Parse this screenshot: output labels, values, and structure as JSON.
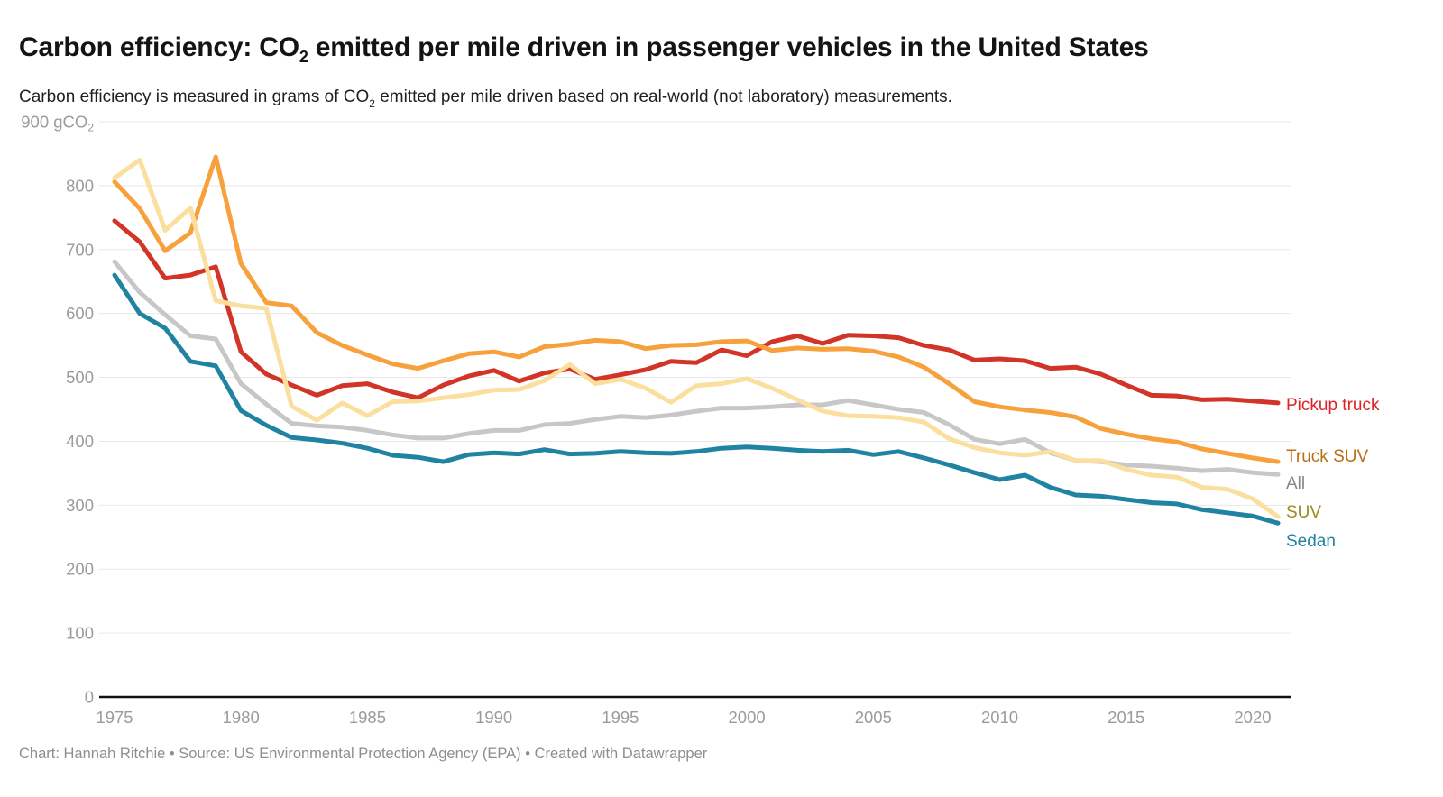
{
  "header": {
    "title_pre": "Carbon efficiency: CO",
    "title_sub": "2",
    "title_post": " emitted per mile driven in passenger vehicles in the United States",
    "subtitle_pre": "Carbon efficiency is measured in grams of CO",
    "subtitle_sub": "2",
    "subtitle_post": " emitted per mile driven based on real-world (not laboratory) measurements."
  },
  "footer": {
    "text": "Chart: Hannah Ritchie • Source: US Environmental Protection Agency (EPA) • Created with Datawrapper"
  },
  "chart_data": {
    "type": "line",
    "title": "Carbon efficiency: CO2 emitted per mile driven in passenger vehicles in the United States",
    "ylabel_unit": "gCO2 per mile",
    "y_top_tick_pre": "900 gCO",
    "y_top_tick_sub": "2",
    "ylim": [
      0,
      900
    ],
    "ytick_step": 100,
    "grid": "horizontal",
    "legend_position": "right-of-line-ends",
    "axis_text_color": "#9b9b9b",
    "gridline_color": "#e8e8e8",
    "baseline_color": "#111111",
    "xticks": [
      1975,
      1980,
      1985,
      1990,
      1995,
      2000,
      2005,
      2010,
      2015,
      2020
    ],
    "x": [
      1975,
      1976,
      1977,
      1978,
      1979,
      1980,
      1981,
      1982,
      1983,
      1984,
      1985,
      1986,
      1987,
      1988,
      1989,
      1990,
      1991,
      1992,
      1993,
      1994,
      1995,
      1996,
      1997,
      1998,
      1999,
      2000,
      2001,
      2002,
      2003,
      2004,
      2005,
      2006,
      2007,
      2008,
      2009,
      2010,
      2011,
      2012,
      2013,
      2014,
      2015,
      2016,
      2017,
      2018,
      2019,
      2020,
      2021
    ],
    "series": [
      {
        "name": "Pickup truck",
        "color": "#d23428",
        "label_color": "#dc2127",
        "label_y": 450,
        "values": [
          745,
          712,
          655,
          660,
          673,
          540,
          505,
          488,
          472,
          487,
          490,
          477,
          468,
          488,
          502,
          511,
          494,
          507,
          513,
          497,
          504,
          512,
          525,
          523,
          543,
          534,
          556,
          565,
          553,
          566,
          565,
          562,
          550,
          543,
          527,
          529,
          526,
          514,
          516,
          505,
          488,
          472,
          471,
          465,
          466,
          463,
          460
        ]
      },
      {
        "name": "Truck SUV",
        "color": "#f7a13c",
        "label_color": "#b86f16",
        "label_y": 507,
        "values": [
          806,
          764,
          698,
          726,
          845,
          678,
          617,
          612,
          570,
          550,
          535,
          521,
          514,
          526,
          537,
          540,
          532,
          548,
          552,
          558,
          556,
          545,
          550,
          551,
          556,
          557,
          542,
          546,
          544,
          545,
          541,
          532,
          516,
          490,
          462,
          454,
          449,
          445,
          438,
          420,
          411,
          404,
          399,
          388,
          381,
          374,
          368
        ]
      },
      {
        "name": "All",
        "color": "#c7c7c7",
        "label_color": "#878787",
        "label_y": 537,
        "values": [
          681,
          633,
          598,
          565,
          560,
          490,
          458,
          428,
          424,
          422,
          417,
          410,
          405,
          405,
          412,
          417,
          417,
          426,
          428,
          434,
          439,
          437,
          441,
          447,
          452,
          452,
          454,
          457,
          457,
          464,
          457,
          450,
          445,
          426,
          403,
          396,
          403,
          382,
          370,
          368,
          363,
          361,
          358,
          354,
          356,
          351,
          348
        ]
      },
      {
        "name": "SUV",
        "color": "#fbdf9f",
        "label_color": "#9d8b20",
        "label_y": 569,
        "values": [
          812,
          840,
          730,
          765,
          620,
          612,
          608,
          455,
          433,
          460,
          440,
          462,
          463,
          468,
          473,
          480,
          481,
          495,
          520,
          490,
          497,
          483,
          461,
          487,
          490,
          498,
          483,
          465,
          447,
          440,
          439,
          437,
          430,
          404,
          390,
          382,
          378,
          384,
          370,
          370,
          356,
          347,
          344,
          328,
          325,
          310,
          282
        ]
      },
      {
        "name": "Sedan",
        "color": "#2083a2",
        "label_color": "#1f81a5",
        "label_y": 601,
        "values": [
          660,
          600,
          577,
          525,
          518,
          448,
          425,
          406,
          402,
          397,
          389,
          378,
          375,
          368,
          379,
          382,
          380,
          387,
          380,
          381,
          384,
          382,
          381,
          384,
          389,
          391,
          389,
          386,
          384,
          386,
          379,
          384,
          374,
          363,
          351,
          340,
          347,
          328,
          316,
          314,
          309,
          304,
          302,
          293,
          288,
          283,
          272
        ]
      }
    ]
  }
}
